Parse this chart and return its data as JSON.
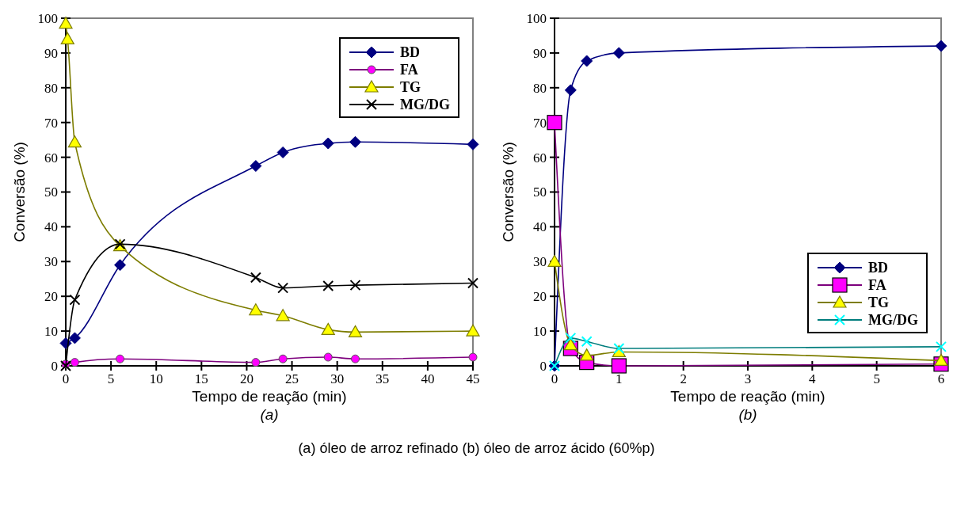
{
  "chart_data": [
    {
      "type": "line",
      "xlabel": "Tempo de reação (min)",
      "ylabel": "Conversão (%)",
      "annotations": [
        "(a)"
      ],
      "xlim": [
        0,
        45
      ],
      "xticks": [
        0,
        5,
        10,
        15,
        20,
        25,
        30,
        35,
        40,
        45
      ],
      "ylim": [
        0,
        100
      ],
      "yticks": [
        0,
        10,
        20,
        30,
        40,
        50,
        60,
        70,
        80,
        90,
        100
      ],
      "legend": "top right",
      "x": [
        0,
        1,
        6,
        21,
        24,
        29,
        32,
        45
      ],
      "series": [
        {
          "name": "BD",
          "color": "#000080",
          "marker": "diamond",
          "values": [
            6.5,
            8,
            29,
            57.5,
            61.4,
            64,
            64.4,
            63.7
          ]
        },
        {
          "name": "FA",
          "color": "#ff00ff",
          "marker": "circle",
          "values": [
            0.5,
            1,
            2,
            1,
            2,
            2.5,
            2,
            2.5
          ]
        },
        {
          "name": "TG",
          "color": "#ffff00",
          "marker": "triangle",
          "x": [
            0,
            0.2,
            1,
            6,
            21,
            24,
            29,
            32,
            45
          ],
          "values": [
            98.5,
            94,
            64.3,
            34.5,
            16,
            14.4,
            10.4,
            9.7,
            10
          ]
        },
        {
          "name": "MG/DG",
          "color": "#000000",
          "marker": "cross",
          "values": [
            0,
            19,
            35,
            25.4,
            22.4,
            23,
            23.2,
            23.8
          ]
        }
      ]
    },
    {
      "type": "line",
      "xlabel": "Tempo de reação (min)",
      "ylabel": "Conversão (%)",
      "annotations": [
        "(b)",
        "(a) óleo de arroz refinado (b) óleo de arroz ácido (60%p)"
      ],
      "xlim": [
        0,
        6
      ],
      "xticks": [
        0,
        1,
        2,
        3,
        4,
        5,
        6
      ],
      "ylim": [
        0,
        100
      ],
      "yticks": [
        0,
        10,
        20,
        30,
        40,
        50,
        60,
        70,
        80,
        90,
        100
      ],
      "legend": "bottom right",
      "x": [
        0,
        0.25,
        0.5,
        1,
        6
      ],
      "series": [
        {
          "name": "BD",
          "color": "#000080",
          "marker": "diamond",
          "values": [
            0,
            79.3,
            87.7,
            90,
            92
          ]
        },
        {
          "name": "FA",
          "color": "#ff00ff",
          "marker": "square",
          "values": [
            70,
            5,
            1,
            0,
            0.5
          ]
        },
        {
          "name": "TG",
          "color": "#ffff00",
          "marker": "triangle",
          "values": [
            30,
            6,
            3,
            4,
            1.5
          ]
        },
        {
          "name": "MG/DG",
          "color": "#00ffff",
          "marker": "cross",
          "values": [
            0,
            8,
            7,
            5,
            5.5
          ]
        }
      ]
    }
  ]
}
